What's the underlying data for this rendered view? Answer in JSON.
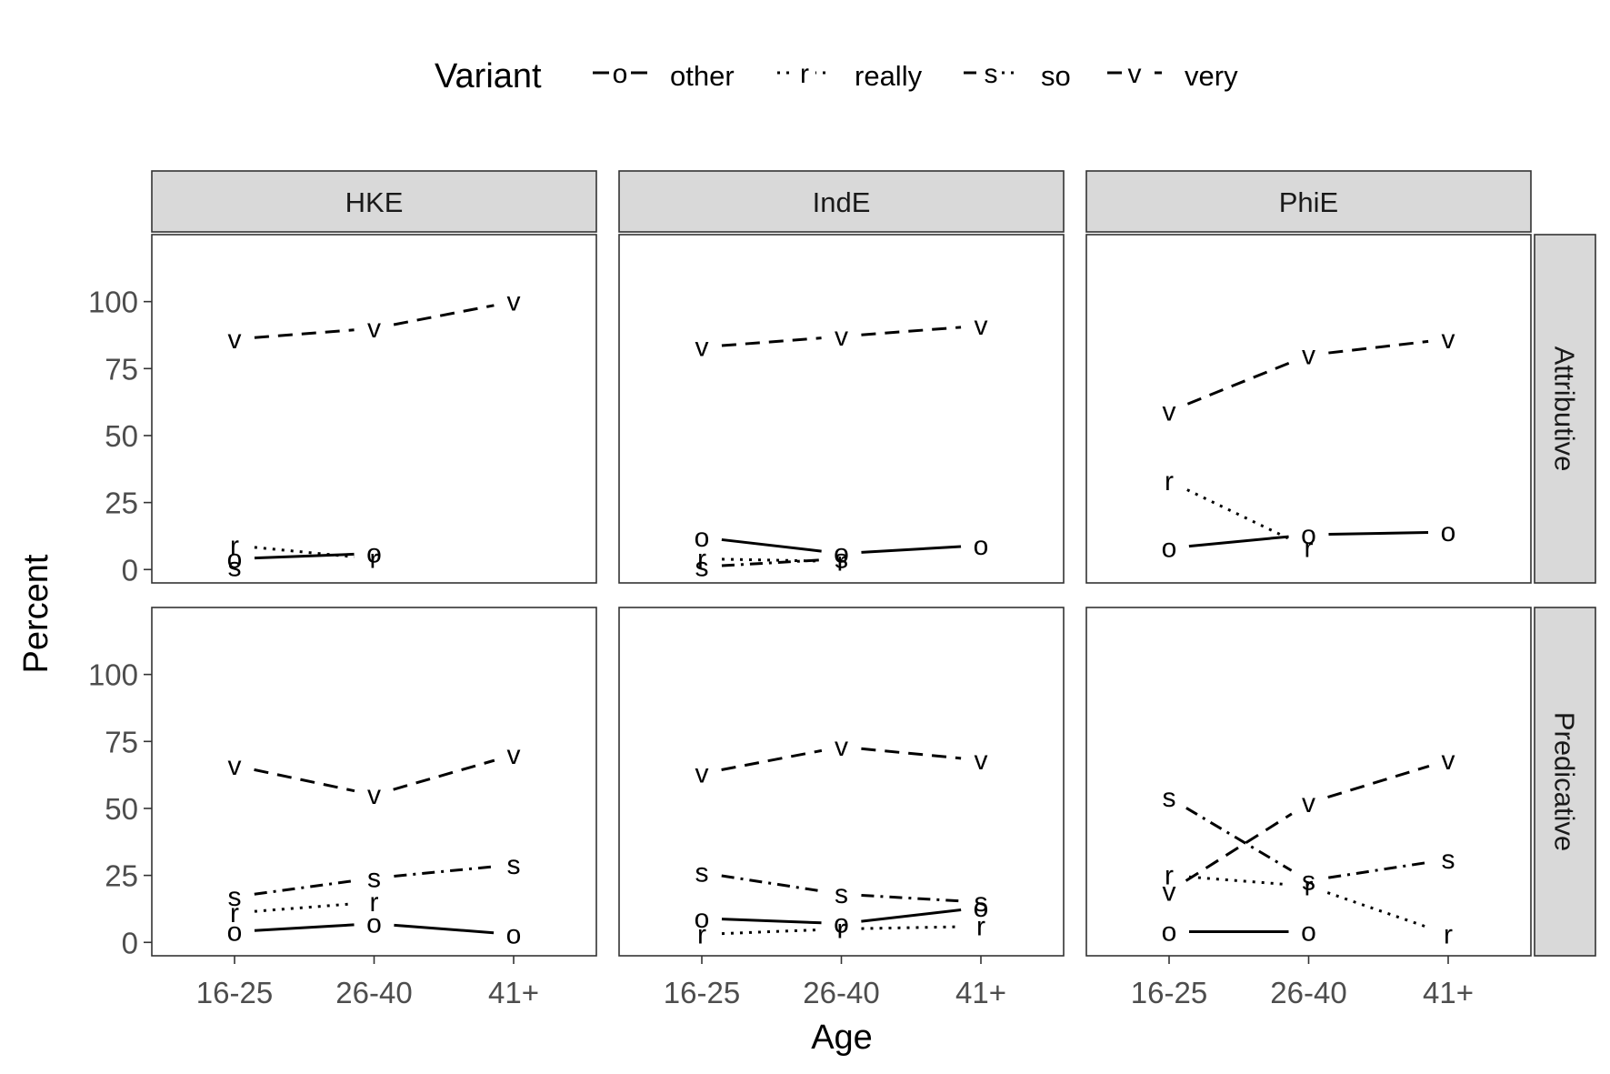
{
  "chart_data": {
    "type": "line",
    "xlabel": "Age",
    "ylabel": "Percent",
    "ylim": [
      -5,
      125
    ],
    "y_ticks": [
      0,
      25,
      50,
      75,
      100
    ],
    "x_categories": [
      "16-25",
      "26-40",
      "41+"
    ],
    "columns": [
      "HKE",
      "IndE",
      "PhiE"
    ],
    "rows": [
      "Attributive",
      "Predicative"
    ],
    "legend": {
      "title": "Variant",
      "position": "top",
      "entries": [
        {
          "key": "other",
          "symbol": "o",
          "label": "other",
          "linetype": "solid"
        },
        {
          "key": "really",
          "symbol": "r",
          "label": "really",
          "linetype": "dotted"
        },
        {
          "key": "so",
          "symbol": "s",
          "label": "so",
          "linetype": "dotdash"
        },
        {
          "key": "very",
          "symbol": "v",
          "label": "very",
          "linetype": "dashed"
        }
      ]
    },
    "grid": false,
    "panels": [
      {
        "column": "HKE",
        "row": "Attributive",
        "series": {
          "other": [
            4,
            6,
            null
          ],
          "really": [
            9,
            4,
            null
          ],
          "so": [
            1,
            null,
            null
          ],
          "very": [
            86,
            90,
            100
          ]
        }
      },
      {
        "column": "IndE",
        "row": "Attributive",
        "series": {
          "other": [
            12,
            6,
            9
          ],
          "really": [
            4,
            3,
            null
          ],
          "so": [
            1,
            4,
            null
          ],
          "very": [
            83,
            87,
            91
          ]
        }
      },
      {
        "column": "PhiE",
        "row": "Attributive",
        "series": {
          "other": [
            8,
            13,
            14
          ],
          "really": [
            33,
            8,
            null
          ],
          "so": [
            null,
            null,
            null
          ],
          "very": [
            59,
            80,
            86
          ]
        }
      },
      {
        "column": "HKE",
        "row": "Predicative",
        "series": {
          "other": [
            4,
            7,
            3
          ],
          "really": [
            11,
            15,
            null
          ],
          "so": [
            17,
            24,
            29
          ],
          "very": [
            66,
            55,
            70
          ]
        }
      },
      {
        "column": "IndE",
        "row": "Predicative",
        "series": {
          "other": [
            9,
            7,
            13
          ],
          "really": [
            3,
            5,
            6
          ],
          "so": [
            26,
            18,
            15
          ],
          "very": [
            63,
            73,
            68
          ]
        }
      },
      {
        "column": "PhiE",
        "row": "Predicative",
        "series": {
          "other": [
            4,
            4,
            null
          ],
          "really": [
            25,
            21,
            3
          ],
          "so": [
            54,
            23,
            31
          ],
          "very": [
            19,
            52,
            68
          ]
        }
      }
    ]
  }
}
